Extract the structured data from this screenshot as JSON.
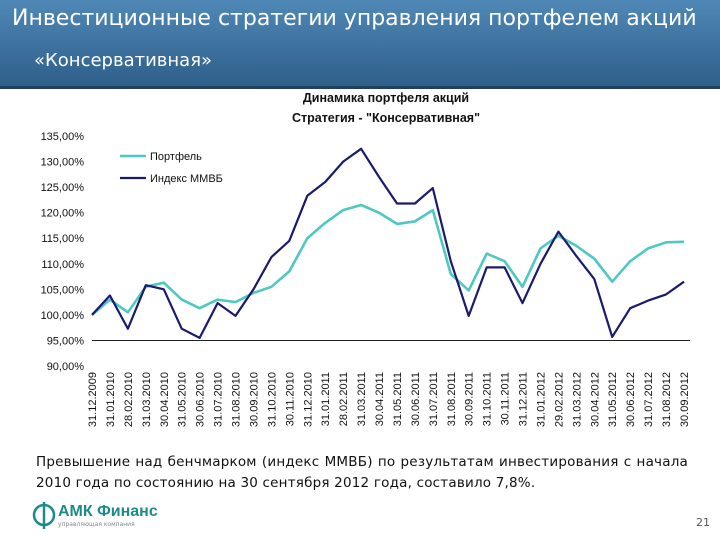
{
  "header": {
    "title": "Инвестиционные стратегии управления портфелем акций",
    "subtitle": "«Консервативная»"
  },
  "chart_data": {
    "type": "line",
    "title": "Динамика портфеля акций",
    "subtitle": "Стратегия - \"Консервативная\"",
    "xlabel": "",
    "ylabel": "",
    "ylim": [
      90,
      135
    ],
    "ytick_values": [
      90,
      95,
      100,
      105,
      110,
      115,
      120,
      125,
      130,
      135
    ],
    "ytick_labels": [
      "90,00%",
      "95,00%",
      "100,00%",
      "105,00%",
      "110,00%",
      "115,00%",
      "120,00%",
      "125,00%",
      "130,00%",
      "135,00%"
    ],
    "categories": [
      "31.12.2009",
      "31.01.2010",
      "28.02.2010",
      "31.03.2010",
      "30.04.2010",
      "31.05.2010",
      "30.06.2010",
      "31.07.2010",
      "31.08.2010",
      "30.09.2010",
      "31.10.2010",
      "30.11.2010",
      "31.12.2010",
      "31.01.2011",
      "28.02.2011",
      "31.03.2011",
      "30.04.2011",
      "31.05.2011",
      "30.06.2011",
      "31.07.2011",
      "31.08.2011",
      "30.09.2011",
      "31.10.2011",
      "30.11.2011",
      "31.12.2011",
      "31.01.2012",
      "29.02.2012",
      "31.03.2012",
      "30.04.2012",
      "31.05.2012",
      "30.06.2012",
      "31.07.2012",
      "31.08.2012",
      "30.09.2012"
    ],
    "legend_position": "top-left",
    "series": [
      {
        "name": "Портфель",
        "color": "#4ec8c0",
        "values": [
          100.0,
          103.0,
          100.5,
          105.5,
          106.3,
          103.0,
          101.3,
          103.0,
          102.5,
          104.3,
          105.5,
          108.5,
          115.0,
          118.0,
          120.5,
          121.5,
          120.0,
          117.8,
          118.3,
          120.5,
          108.0,
          104.8,
          112.0,
          110.5,
          105.5,
          113.0,
          115.5,
          113.5,
          111.0,
          106.5,
          110.5,
          113.0,
          114.2,
          114.3
        ]
      },
      {
        "name": "Индекс ММВБ",
        "color": "#1a1a6e",
        "values": [
          100.0,
          103.8,
          97.3,
          105.8,
          105.0,
          97.3,
          95.5,
          102.3,
          99.8,
          105.0,
          111.3,
          114.5,
          123.3,
          126.0,
          130.0,
          132.5,
          127.0,
          121.8,
          121.8,
          124.8,
          110.5,
          99.8,
          109.3,
          109.3,
          102.3,
          110.0,
          116.3,
          111.5,
          107.0,
          95.7,
          101.3,
          102.8,
          104.0,
          106.5
        ]
      }
    ]
  },
  "footnote": "Превышение над бенчмарком (индекс ММВБ) по результатам инвестирования с начала 2010 года по состоянию на 30 сентября 2012 года, составило 7,8%.",
  "logo": {
    "name": "АМК Финанс",
    "tagline": "управляющая компания"
  },
  "page_number": "21"
}
